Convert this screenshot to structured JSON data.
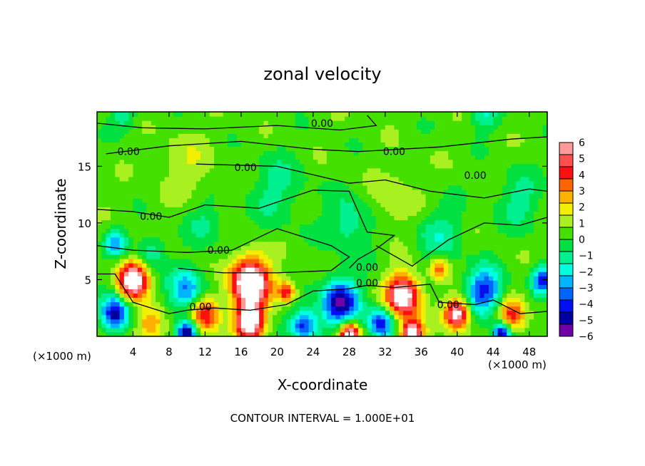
{
  "chart_data": {
    "type": "heatmap",
    "title": "zonal velocity",
    "xlabel": "X-coordinate",
    "ylabel": "Z-coordinate",
    "x_unit_left": "(×1000 m)",
    "x_unit_right": "(×1000 m)",
    "footer": "CONTOUR INTERVAL = 1.000E+01",
    "xlim": [
      0,
      50
    ],
    "ylim": [
      0,
      19.8
    ],
    "xticks": [
      4,
      8,
      12,
      16,
      20,
      24,
      28,
      32,
      36,
      40,
      44,
      48
    ],
    "yticks": [
      5,
      10,
      15
    ],
    "colorbar": {
      "labels": [
        "6",
        "5",
        "4",
        "3",
        "2",
        "1",
        "0",
        "−1",
        "−2",
        "−3",
        "−4",
        "−5",
        "−6"
      ],
      "range": [
        -6,
        6
      ],
      "colors": [
        "#ff9a9a",
        "#ff5050",
        "#ff1010",
        "#ff6400",
        "#ffb000",
        "#f2f000",
        "#a8f020",
        "#44e000",
        "#00e040",
        "#00f090",
        "#00ffe0",
        "#00b4ff",
        "#0064ff",
        "#0010f0",
        "#0000a0",
        "#7000a8"
      ],
      "over_color": "#ffffff"
    },
    "field_background": 0.4,
    "field_features": [
      {
        "x": 4,
        "z": 5,
        "amp": 7,
        "r": 1.6
      },
      {
        "x": 17,
        "z": 4.8,
        "amp": 8,
        "r": 2.1
      },
      {
        "x": 34,
        "z": 3.6,
        "amp": 7,
        "r": 1.8
      },
      {
        "x": 17,
        "z": 1.3,
        "amp": 7,
        "r": 1.6
      },
      {
        "x": 28,
        "z": 0.2,
        "amp": 7,
        "r": 1.1
      },
      {
        "x": 35,
        "z": 0.2,
        "amp": 7,
        "r": 1.2
      },
      {
        "x": 40,
        "z": 2,
        "amp": 6.5,
        "r": 1.3
      },
      {
        "x": 12,
        "z": 2,
        "amp": 4.5,
        "r": 1.6
      },
      {
        "x": 21,
        "z": 4,
        "amp": 4,
        "r": 1
      },
      {
        "x": 46,
        "z": 1.8,
        "amp": 4,
        "r": 1.5
      },
      {
        "x": 6,
        "z": 1.2,
        "amp": 3,
        "r": 1.5
      },
      {
        "x": 38,
        "z": 6,
        "amp": 3,
        "r": 1
      },
      {
        "x": 2,
        "z": 2,
        "amp": -5.5,
        "r": 1.5
      },
      {
        "x": 10,
        "z": 4,
        "amp": -3.5,
        "r": 2
      },
      {
        "x": 27,
        "z": 3,
        "amp": -5.5,
        "r": 2.1
      },
      {
        "x": 43,
        "z": 4,
        "amp": -4.5,
        "r": 2
      },
      {
        "x": 49.5,
        "z": 5,
        "amp": -4.5,
        "r": 1.2
      },
      {
        "x": 10,
        "z": 0.3,
        "amp": -6,
        "r": 1.1
      },
      {
        "x": 23,
        "z": 1,
        "amp": -4.5,
        "r": 1.5
      },
      {
        "x": 31.5,
        "z": 1.2,
        "amp": -4.5,
        "r": 1.4
      },
      {
        "x": 45,
        "z": 0.3,
        "amp": -6,
        "r": 1
      },
      {
        "x": 2,
        "z": 8.3,
        "amp": -3,
        "r": 1.2
      },
      {
        "x": 6,
        "z": 7.5,
        "amp": -2,
        "r": 1.5
      },
      {
        "x": 28,
        "z": 10,
        "amp": -1.8,
        "r": 2.5
      },
      {
        "x": 38,
        "z": 9,
        "amp": -1.6,
        "r": 2.5
      },
      {
        "x": 20,
        "z": 13,
        "amp": -1.4,
        "r": 3
      },
      {
        "x": 47,
        "z": 12,
        "amp": -1.5,
        "r": 2.5
      },
      {
        "x": 12,
        "z": 10,
        "amp": -1.3,
        "r": 2
      },
      {
        "x": 43,
        "z": 19.5,
        "amp": -1.8,
        "r": 1.5
      },
      {
        "x": 3,
        "z": 19.5,
        "amp": -1.5,
        "r": 1.5
      },
      {
        "x": 33,
        "z": 12,
        "amp": 1.1,
        "r": 2.5
      },
      {
        "x": 10,
        "z": 15,
        "amp": 0.9,
        "r": 3
      }
    ],
    "contours": [
      [
        [
          0,
          18.8
        ],
        [
          5,
          18.4
        ],
        [
          12,
          18.3
        ],
        [
          20,
          18.6
        ],
        [
          27,
          18.2
        ],
        [
          31,
          18.6
        ],
        [
          30,
          19.5
        ]
      ],
      [
        [
          1,
          16.1
        ],
        [
          8,
          16.8
        ],
        [
          16,
          17.2
        ],
        [
          24,
          16.5
        ],
        [
          29,
          16.3
        ],
        [
          38,
          16.7
        ],
        [
          46,
          17.4
        ],
        [
          50,
          17.6
        ]
      ],
      [
        [
          11,
          15.2
        ],
        [
          20,
          15
        ],
        [
          28,
          13.5
        ],
        [
          32,
          13.8
        ],
        [
          37,
          12.8
        ],
        [
          43,
          12.2
        ],
        [
          48,
          13
        ],
        [
          50,
          12.8
        ]
      ],
      [
        [
          0,
          11.2
        ],
        [
          4,
          11
        ],
        [
          8,
          10.5
        ],
        [
          12,
          11.6
        ],
        [
          18,
          11.3
        ],
        [
          24,
          12.9
        ],
        [
          28,
          12.8
        ],
        [
          30,
          9.2
        ],
        [
          33,
          8.9
        ],
        [
          31,
          7.7
        ],
        [
          29,
          6.8
        ],
        [
          28,
          6
        ]
      ],
      [
        [
          0,
          8
        ],
        [
          4,
          7.6
        ],
        [
          10,
          7.4
        ],
        [
          15,
          7.6
        ],
        [
          20,
          9.5
        ],
        [
          26,
          8
        ],
        [
          28,
          7
        ],
        [
          26,
          5.8
        ],
        [
          20,
          5.6
        ],
        [
          14,
          5.6
        ],
        [
          9,
          6
        ]
      ],
      [
        [
          31,
          8
        ],
        [
          35,
          6.2
        ],
        [
          39,
          8.5
        ],
        [
          43,
          10
        ],
        [
          47,
          9.8
        ],
        [
          50,
          10.5
        ]
      ],
      [
        [
          0,
          5.5
        ],
        [
          2,
          5.5
        ],
        [
          4,
          3
        ],
        [
          8,
          2
        ],
        [
          10,
          2.3
        ],
        [
          13,
          2.5
        ],
        [
          17,
          2.3
        ],
        [
          21,
          2.8
        ],
        [
          24,
          4
        ],
        [
          28,
          4.2
        ],
        [
          30,
          4.5
        ],
        [
          33,
          4.3
        ],
        [
          37,
          4.6
        ],
        [
          38,
          3
        ],
        [
          42,
          2.8
        ],
        [
          44,
          3.2
        ],
        [
          47,
          2
        ],
        [
          50,
          2.2
        ]
      ]
    ],
    "contour_labels": [
      {
        "text": "0.00",
        "x": 25,
        "z": 18.8
      },
      {
        "text": "0.00",
        "x": 3.5,
        "z": 16.3
      },
      {
        "text": "0.00",
        "x": 33,
        "z": 16.3
      },
      {
        "text": "0.00",
        "x": 16.5,
        "z": 14.9
      },
      {
        "text": "0.00",
        "x": 42,
        "z": 14.2
      },
      {
        "text": "0.00",
        "x": 6,
        "z": 10.6
      },
      {
        "text": "0.00",
        "x": 13.5,
        "z": 7.6
      },
      {
        "text": "0.00",
        "x": 30,
        "z": 6.1
      },
      {
        "text": "0.00",
        "x": 30,
        "z": 4.7
      },
      {
        "text": "0.00",
        "x": 11.5,
        "z": 2.6
      },
      {
        "text": "0.00",
        "x": 39,
        "z": 2.8
      }
    ]
  }
}
